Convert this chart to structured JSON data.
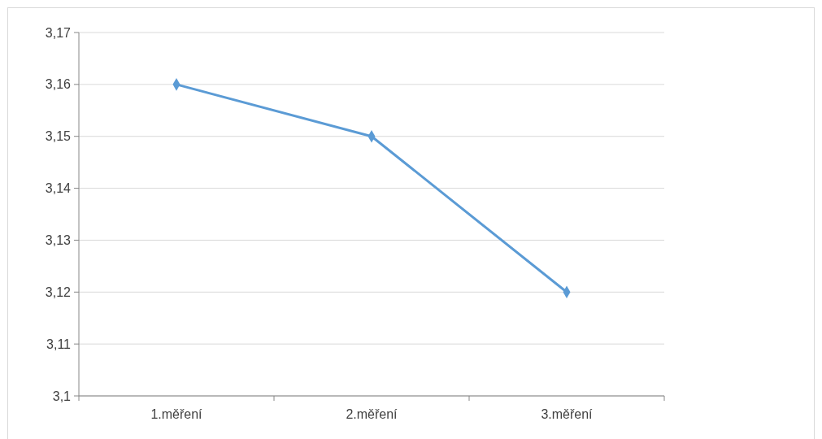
{
  "chart_data": {
    "type": "line",
    "categories": [
      "1.měření",
      "2.měření",
      "3.měření"
    ],
    "series": [
      {
        "color": "#5b9bd5",
        "values": [
          3.16,
          3.15,
          3.12
        ]
      }
    ],
    "ylim": [
      3.1,
      3.17
    ],
    "yticks": [
      {
        "value": 3.1,
        "label": "3,1"
      },
      {
        "value": 3.11,
        "label": "3,11"
      },
      {
        "value": 3.12,
        "label": "3,12"
      },
      {
        "value": 3.13,
        "label": "3,13"
      },
      {
        "value": 3.14,
        "label": "3,14"
      },
      {
        "value": 3.15,
        "label": "3,15"
      },
      {
        "value": 3.16,
        "label": "3,16"
      },
      {
        "value": 3.17,
        "label": "3,17"
      }
    ],
    "grid": "y",
    "marker": "diamond",
    "line_style": "solid"
  }
}
